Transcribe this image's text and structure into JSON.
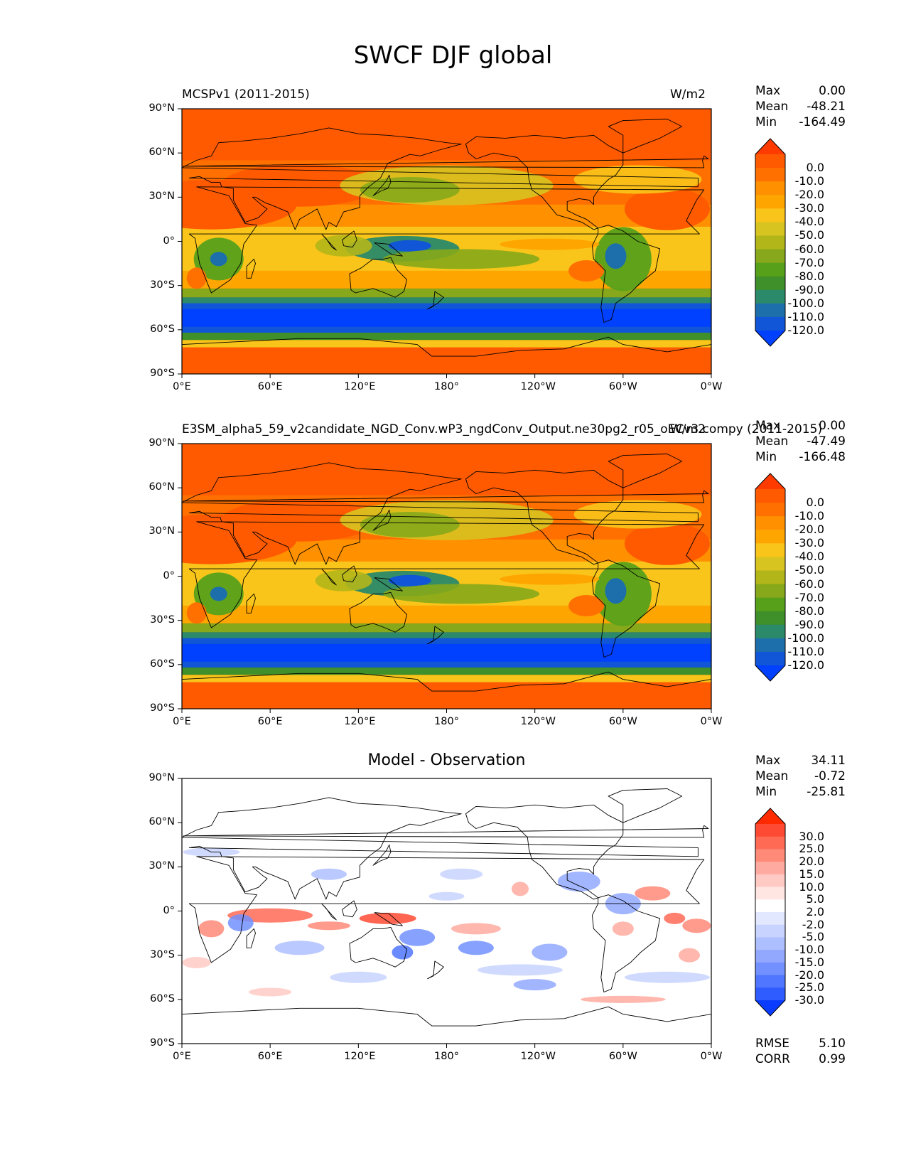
{
  "title": "SWCF DJF global",
  "panels": [
    {
      "left_title": "MCSPv1 (2011-2015)",
      "right_title": "W/m2",
      "center_title": "",
      "stats": [
        {
          "label": "Max",
          "value": "0.00"
        },
        {
          "label": "Mean",
          "value": "-48.21"
        },
        {
          "label": "Min",
          "value": "-164.49"
        }
      ],
      "colorbar": {
        "labels": [
          "0.0",
          "-10.0",
          "-20.0",
          "-30.0",
          "-40.0",
          "-50.0",
          "-60.0",
          "-70.0",
          "-80.0",
          "-90.0",
          "-100.0",
          "-110.0",
          "-120.0"
        ],
        "colors": [
          "#ff3b00",
          "#ff5a00",
          "#ff7000",
          "#ff9000",
          "#ffa500",
          "#f9c51a",
          "#d8c420",
          "#b2b619",
          "#86a81a",
          "#57a11a",
          "#3f8f2a",
          "#2a8a6a",
          "#1c6faa",
          "#1056d6",
          "#0040ff"
        ]
      },
      "extra_stats": []
    },
    {
      "left_title": "E3SM_alpha5_59_v2candidate_NGD_Conv.wP3_ngdConv_Output.ne30pg2_r05_oECv3.compy (2011-2015)",
      "right_title": "W/m2",
      "center_title": "",
      "stats": [
        {
          "label": "Max",
          "value": "0.00"
        },
        {
          "label": "Mean",
          "value": "-47.49"
        },
        {
          "label": "Min",
          "value": "-166.48"
        }
      ],
      "colorbar": {
        "labels": [
          "0.0",
          "-10.0",
          "-20.0",
          "-30.0",
          "-40.0",
          "-50.0",
          "-60.0",
          "-70.0",
          "-80.0",
          "-90.0",
          "-100.0",
          "-110.0",
          "-120.0"
        ],
        "colors": [
          "#ff3b00",
          "#ff5a00",
          "#ff7000",
          "#ff9000",
          "#ffa500",
          "#f9c51a",
          "#d8c420",
          "#b2b619",
          "#86a81a",
          "#57a11a",
          "#3f8f2a",
          "#2a8a6a",
          "#1c6faa",
          "#1056d6",
          "#0040ff"
        ]
      },
      "extra_stats": []
    },
    {
      "left_title": "",
      "right_title": "",
      "center_title": "Model - Observation",
      "stats": [
        {
          "label": "Max",
          "value": "34.11"
        },
        {
          "label": "Mean",
          "value": "-0.72"
        },
        {
          "label": "Min",
          "value": "-25.81"
        }
      ],
      "colorbar": {
        "labels": [
          "30.0",
          "25.0",
          "20.0",
          "15.0",
          "10.0",
          "5.0",
          "2.0",
          "-2.0",
          "-5.0",
          "-10.0",
          "-15.0",
          "-20.0",
          "-25.0",
          "-30.0"
        ],
        "colors": [
          "#ff2a00",
          "#ff4a33",
          "#ff6a55",
          "#ff8a78",
          "#ffaaa0",
          "#ffcac4",
          "#ffe6e2",
          "#ffffff",
          "#e2e8ff",
          "#c8d4ff",
          "#aebfff",
          "#92a8ff",
          "#7290ff",
          "#5075ff",
          "#2e5cff",
          "#0a3cff"
        ]
      },
      "extra_stats": [
        {
          "label": "RMSE",
          "value": "5.10"
        },
        {
          "label": "CORR",
          "value": "0.99"
        }
      ]
    }
  ],
  "chart_data": [
    {
      "type": "heatmap",
      "title": "MCSPv1 (2011-2015)",
      "units": "W/m2",
      "x_tick_labels": [
        "0°E",
        "60°E",
        "120°E",
        "180°",
        "120°W",
        "60°W",
        "0°W"
      ],
      "y_tick_labels": [
        "90°N",
        "60°N",
        "30°N",
        "0°",
        "30°S",
        "60°S",
        "90°S"
      ],
      "xlim": [
        0,
        360
      ],
      "ylim": [
        -90,
        90
      ],
      "color_levels": [
        0,
        -10,
        -20,
        -30,
        -40,
        -50,
        -60,
        -70,
        -80,
        -90,
        -100,
        -110,
        -120
      ],
      "stats": {
        "max": 0.0,
        "mean": -48.21,
        "min": -164.49
      }
    },
    {
      "type": "heatmap",
      "title": "E3SM_alpha5_59_v2candidate_NGD_Conv.wP3_ngdConv_Output.ne30pg2_r05_oECv3.compy (2011-2015)",
      "units": "W/m2",
      "x_tick_labels": [
        "0°E",
        "60°E",
        "120°E",
        "180°",
        "120°W",
        "60°W",
        "0°W"
      ],
      "y_tick_labels": [
        "90°N",
        "60°N",
        "30°N",
        "0°",
        "30°S",
        "60°S",
        "90°S"
      ],
      "xlim": [
        0,
        360
      ],
      "ylim": [
        -90,
        90
      ],
      "color_levels": [
        0,
        -10,
        -20,
        -30,
        -40,
        -50,
        -60,
        -70,
        -80,
        -90,
        -100,
        -110,
        -120
      ],
      "stats": {
        "max": 0.0,
        "mean": -47.49,
        "min": -166.48
      }
    },
    {
      "type": "heatmap",
      "title": "Model - Observation",
      "x_tick_labels": [
        "0°E",
        "60°E",
        "120°E",
        "180°",
        "120°W",
        "60°W",
        "0°W"
      ],
      "y_tick_labels": [
        "90°N",
        "60°N",
        "30°N",
        "0°",
        "30°S",
        "60°S",
        "90°S"
      ],
      "xlim": [
        0,
        360
      ],
      "ylim": [
        -90,
        90
      ],
      "color_levels": [
        30,
        25,
        20,
        15,
        10,
        5,
        2,
        -2,
        -5,
        -10,
        -15,
        -20,
        -25,
        -30
      ],
      "stats": {
        "max": 34.11,
        "mean": -0.72,
        "min": -25.81,
        "rmse": 5.1,
        "corr": 0.99
      }
    }
  ]
}
